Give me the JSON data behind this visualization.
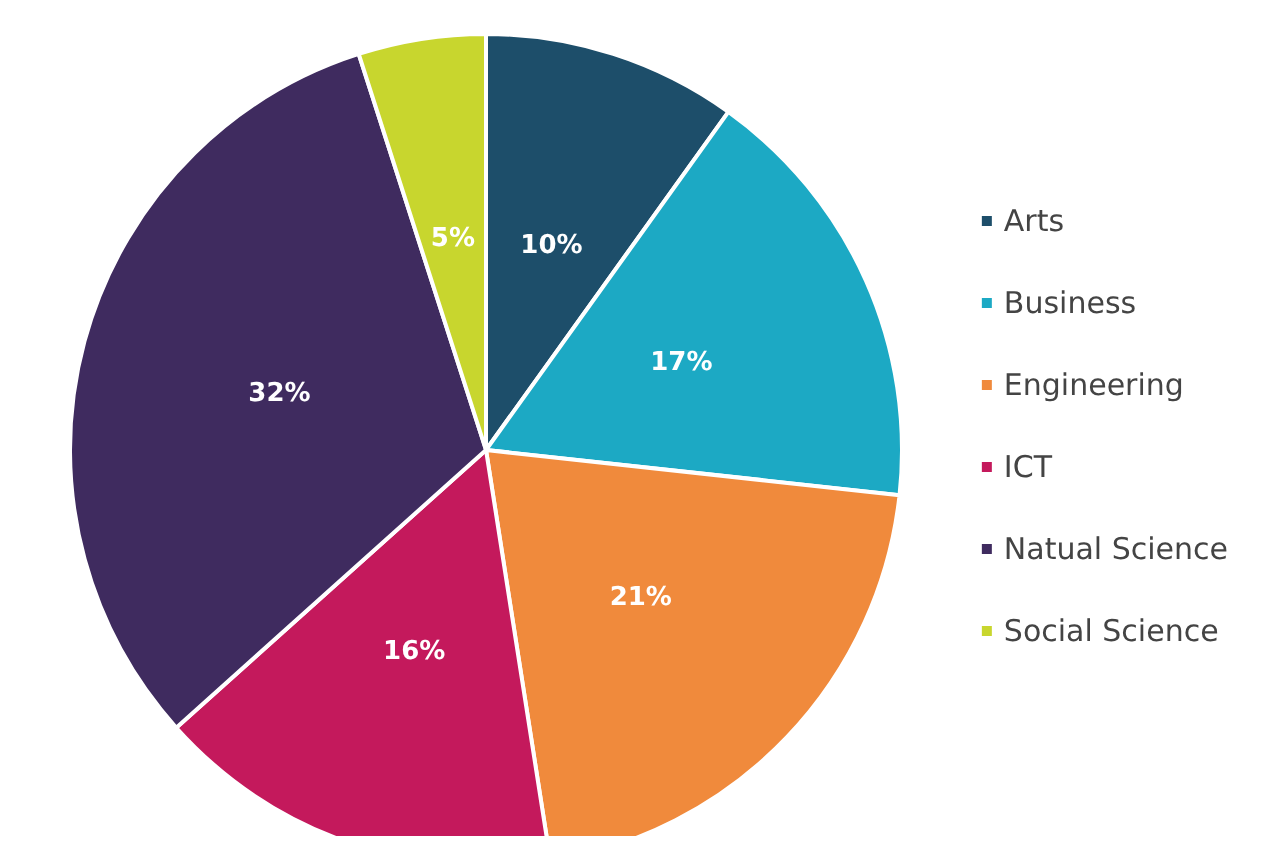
{
  "chart_data": {
    "type": "pie",
    "categories": [
      "Arts",
      "Business",
      "Engineering",
      "ICT",
      "Natual Science",
      "Social Science"
    ],
    "values": [
      10,
      17,
      21,
      16,
      32,
      5
    ],
    "value_labels": [
      "10%",
      "17%",
      "21%",
      "16%",
      "32%",
      "5%"
    ],
    "colors": [
      "#1d4e6a",
      "#1ca9c4",
      "#f08a3c",
      "#c4195c",
      "#3f2b5f",
      "#c8d62e"
    ],
    "legend": "right"
  }
}
